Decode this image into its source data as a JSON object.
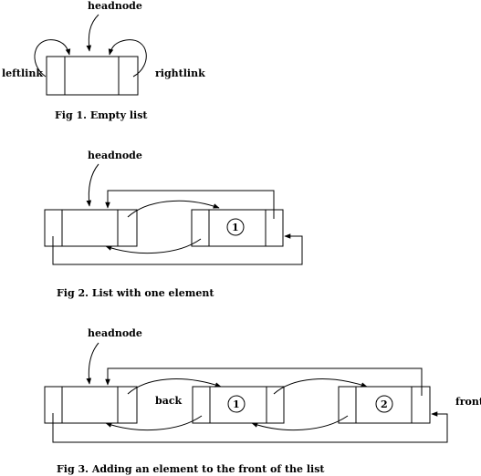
{
  "fig1": {
    "headnode": "headnode",
    "leftlink": "leftlink",
    "rightlink": "rightlink",
    "caption": "Fig 1. Empty list"
  },
  "fig2": {
    "headnode": "headnode",
    "node1": "1",
    "caption": "Fig 2. List with one element"
  },
  "fig3": {
    "headnode": "headnode",
    "back": "back",
    "front": "front",
    "node1": "1",
    "node2": "2",
    "caption": "Fig 3. Adding an element to the front of the list"
  }
}
